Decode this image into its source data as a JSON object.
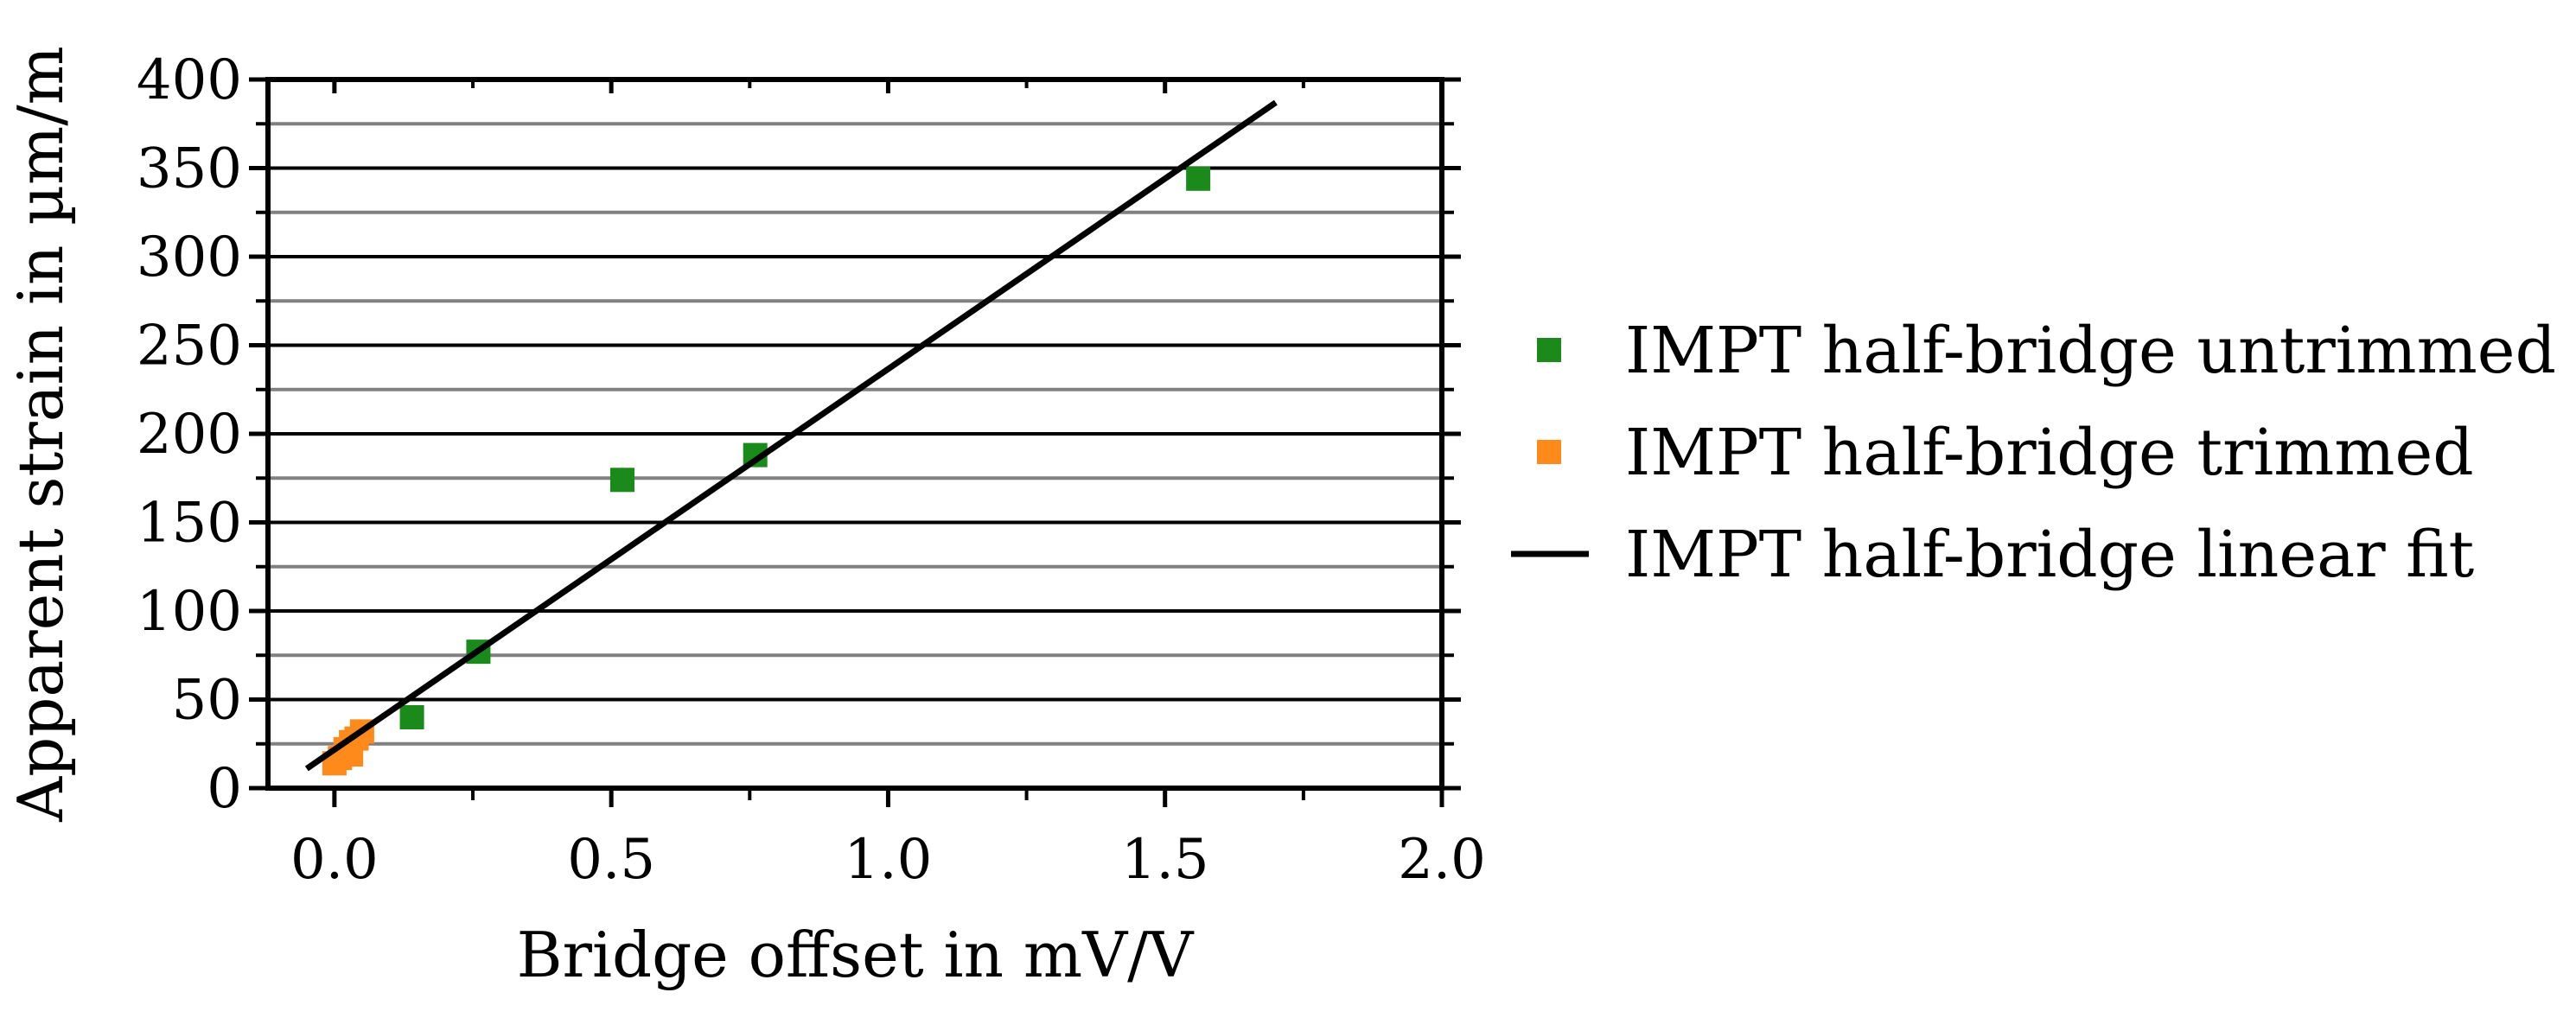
{
  "chart_data": {
    "type": "scatter",
    "xlabel": "Bridge offset in mV/V",
    "ylabel": "Apparent strain in µm/m",
    "xlim": [
      -0.12,
      2.0
    ],
    "ylim": [
      0,
      400
    ],
    "x_ticks": [
      0.0,
      0.5,
      1.0,
      1.5,
      2.0
    ],
    "x_tick_labels": [
      "0.0",
      "0.5",
      "1.0",
      "1.5",
      "2.0"
    ],
    "y_ticks": [
      0,
      50,
      100,
      150,
      200,
      250,
      300,
      350,
      400
    ],
    "y_tick_labels": [
      "0",
      "50",
      "100",
      "150",
      "200",
      "250",
      "300",
      "350",
      "400"
    ],
    "grid": {
      "major_y": true,
      "minor_y": true
    },
    "legend_position": "right",
    "series": [
      {
        "name": "IMPT half-bridge untrimmed",
        "kind": "scatter",
        "marker": "square",
        "color": "#1a8a1a",
        "points": [
          {
            "x": 0.14,
            "y": 40
          },
          {
            "x": 0.26,
            "y": 77
          },
          {
            "x": 0.52,
            "y": 174
          },
          {
            "x": 0.76,
            "y": 188
          },
          {
            "x": 1.56,
            "y": 344
          }
        ]
      },
      {
        "name": "IMPT half-bridge trimmed",
        "kind": "scatter",
        "marker": "square",
        "color": "#ff8a1c",
        "points": [
          {
            "x": 0.0,
            "y": 14
          },
          {
            "x": 0.01,
            "y": 17
          },
          {
            "x": 0.02,
            "y": 22
          },
          {
            "x": 0.03,
            "y": 26
          },
          {
            "x": 0.03,
            "y": 19
          },
          {
            "x": 0.04,
            "y": 28
          },
          {
            "x": 0.05,
            "y": 32
          }
        ]
      },
      {
        "name": "IMPT half-bridge linear fit",
        "kind": "line",
        "color": "#000000",
        "points": [
          {
            "x": -0.05,
            "y": 11
          },
          {
            "x": 1.7,
            "y": 387
          }
        ]
      }
    ]
  }
}
